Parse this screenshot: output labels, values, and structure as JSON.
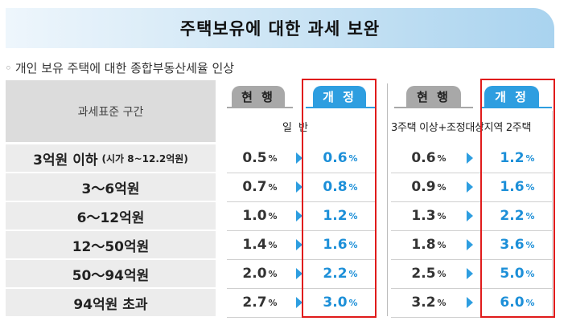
{
  "banner": {
    "title": "주택보유에 대한 과세 보완"
  },
  "subtitle": {
    "bullet": "◦",
    "text": "개인 보유 주택에 대한 종합부동산세율 인상"
  },
  "header": {
    "range_label": "과세표준 구간",
    "tab_current": "현 행",
    "tab_revised": "개 정",
    "category_general_1": "일",
    "category_general_2": "반",
    "category_multi": "3주택 이상+조정대상지역 2주택"
  },
  "rows": [
    {
      "label": "3억원 이하",
      "note": "(시가 8~12.2억원)",
      "cur_general": "0.5",
      "new_general": "0.6",
      "cur_multi": "0.6",
      "new_multi": "1.2"
    },
    {
      "label": "3～6억원",
      "note": "",
      "cur_general": "0.7",
      "new_general": "0.8",
      "cur_multi": "0.9",
      "new_multi": "1.6"
    },
    {
      "label": "6～12억원",
      "note": "",
      "cur_general": "1.0",
      "new_general": "1.2",
      "cur_multi": "1.3",
      "new_multi": "2.2"
    },
    {
      "label": "12～50억원",
      "note": "",
      "cur_general": "1.4",
      "new_general": "1.6",
      "cur_multi": "1.8",
      "new_multi": "3.6"
    },
    {
      "label": "50～94억원",
      "note": "",
      "cur_general": "2.0",
      "new_general": "2.2",
      "cur_multi": "2.5",
      "new_multi": "5.0"
    },
    {
      "label": "94억원 초과",
      "note": "",
      "cur_general": "2.7",
      "new_general": "3.0",
      "cur_multi": "3.2",
      "new_multi": "6.0"
    }
  ],
  "units": {
    "percent": "%"
  },
  "colors": {
    "accent_blue": "#2e9ee0",
    "value_blue": "#1c8fd8",
    "highlight_red": "#e01b1b",
    "tab_gray": "#a8a8a8"
  }
}
